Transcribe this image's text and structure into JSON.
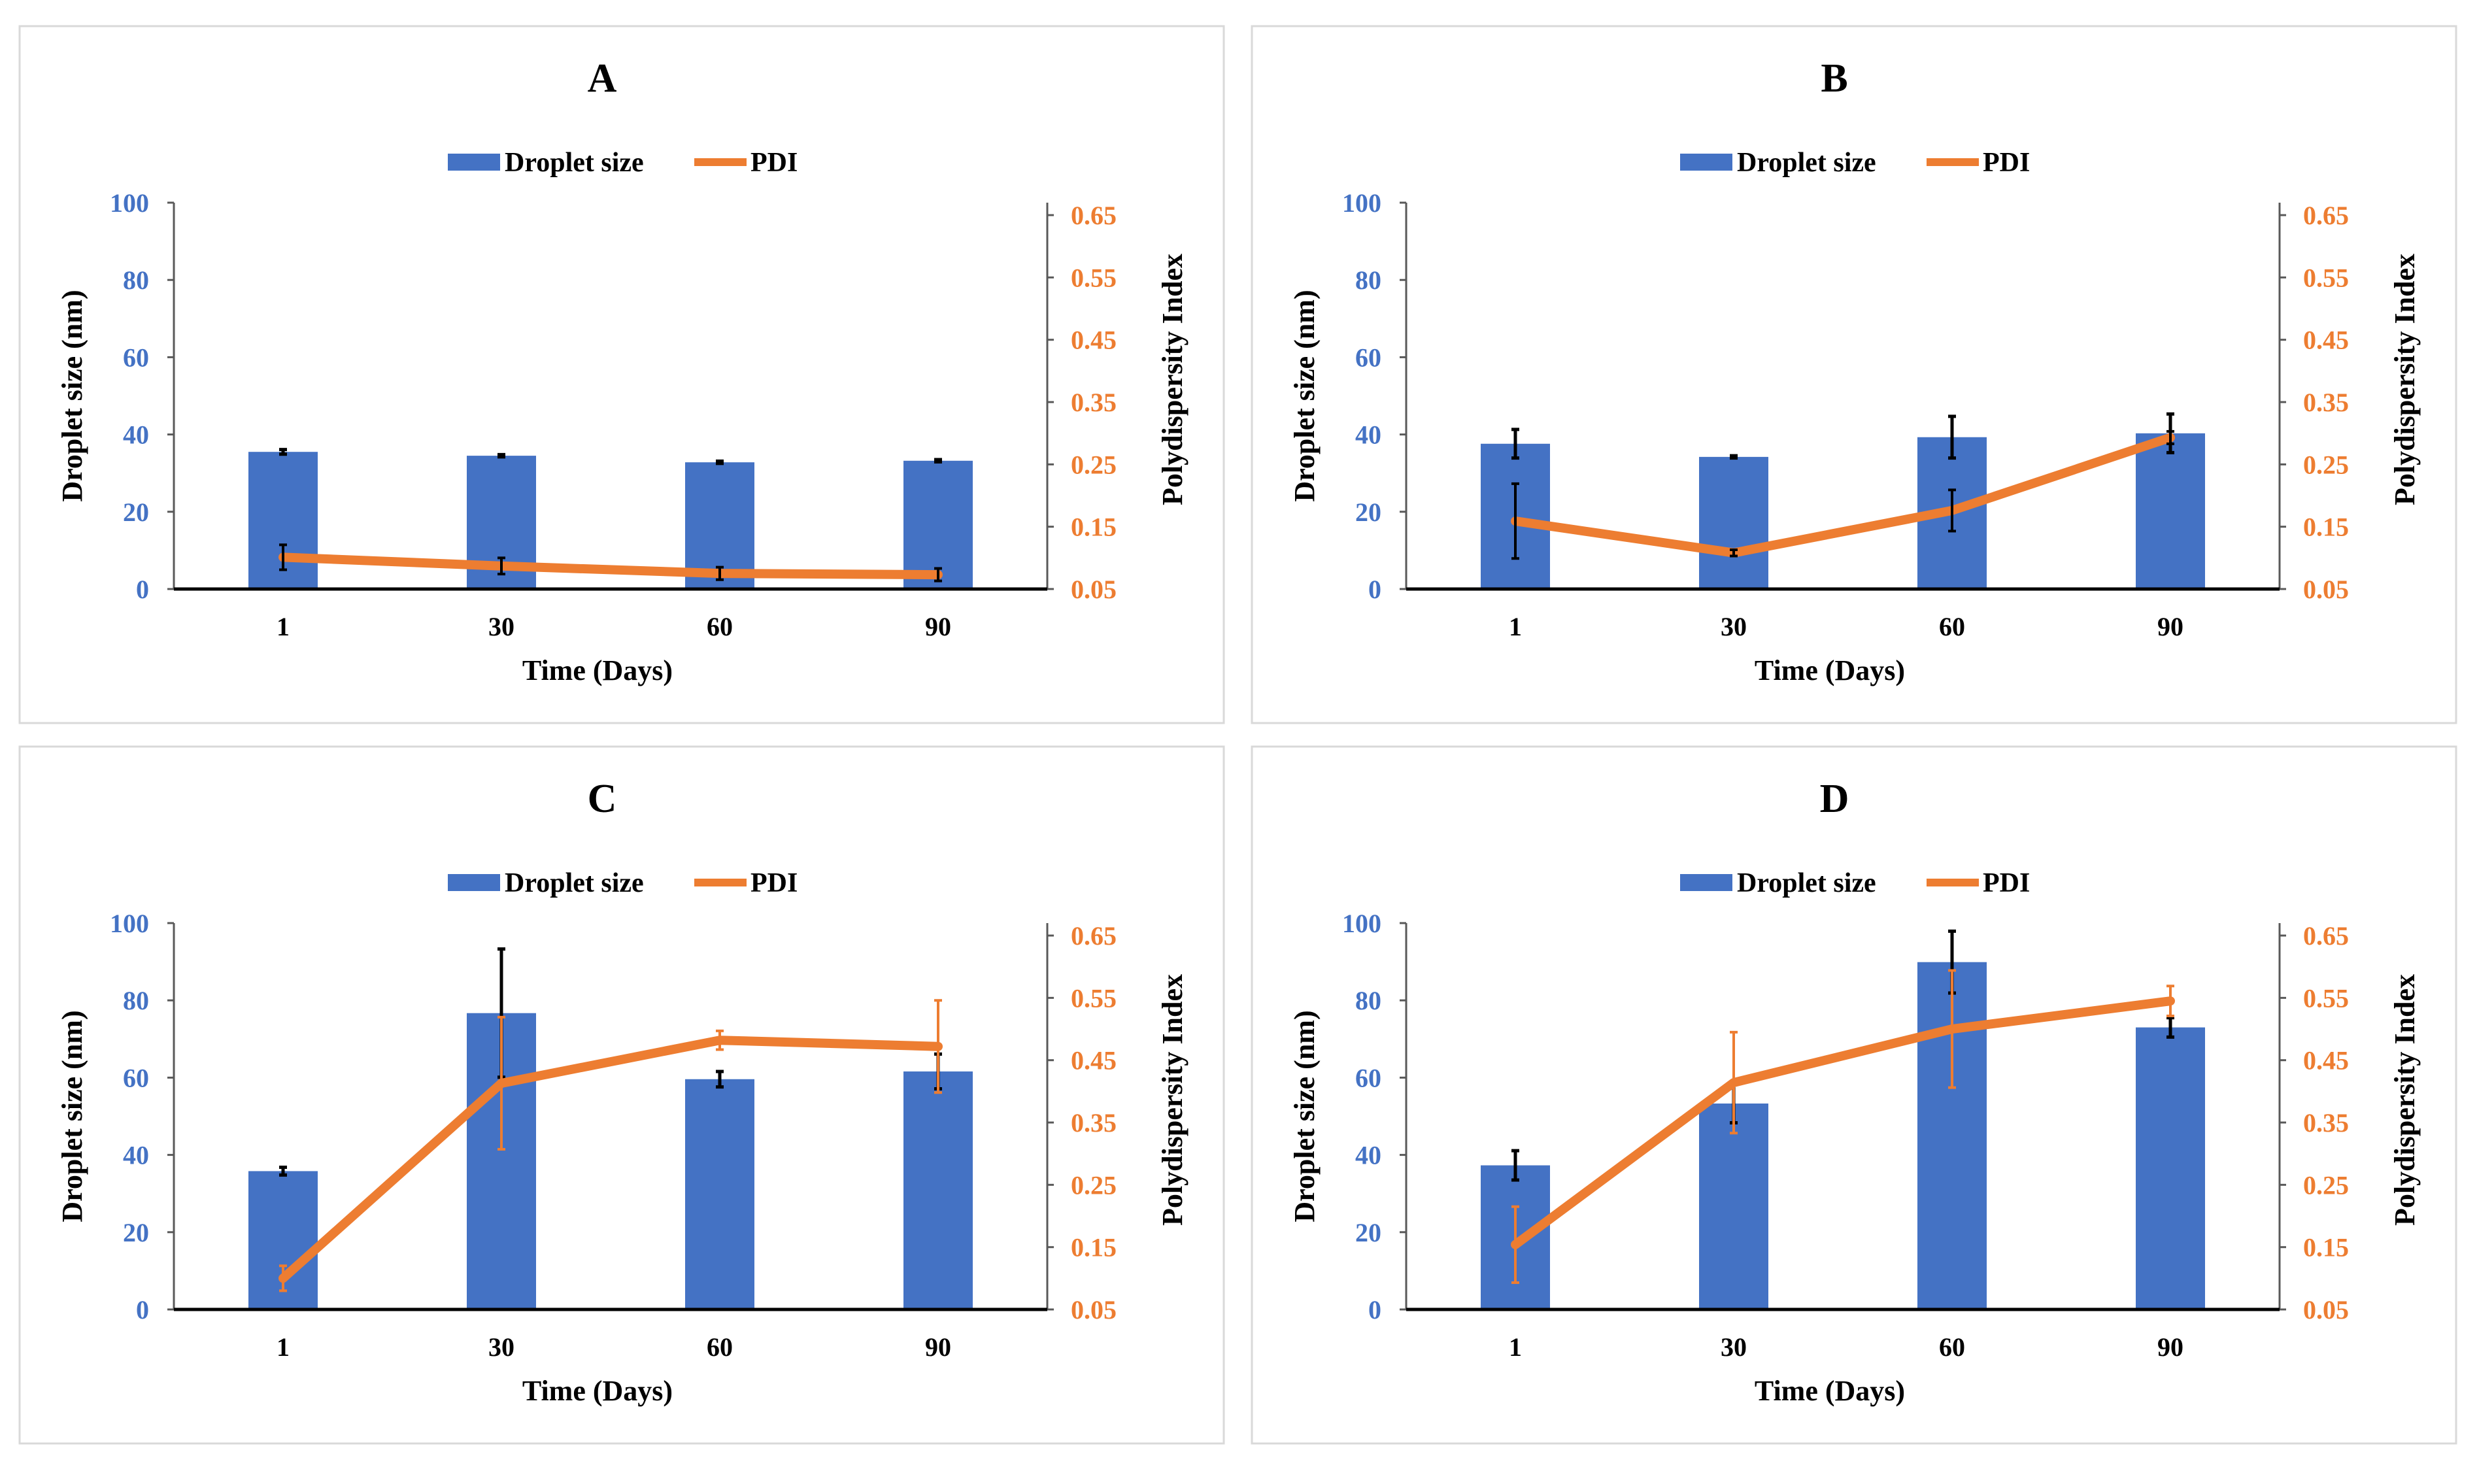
{
  "chart_data": [
    {
      "type": "bar+line",
      "title": "A",
      "categories": [
        "1",
        "30",
        "60",
        "90"
      ],
      "xlabel": "Time (Days)",
      "ylabel": "Droplet size (nm)",
      "y2label": "Polydispersity Index",
      "ylim": [
        0,
        100
      ],
      "yticks": [
        0,
        20,
        40,
        60,
        80,
        100
      ],
      "y2lim": [
        0.05,
        0.67
      ],
      "y2ticks": [
        "0.05",
        "0.15",
        "0.25",
        "0.35",
        "0.45",
        "0.55",
        "0.65"
      ],
      "legend": [
        "Droplet size",
        "PDI"
      ],
      "series": [
        {
          "name": "Droplet size",
          "type": "bar",
          "values": [
            35.5,
            34.5,
            32.8,
            33.2
          ],
          "errors": [
            0.6,
            0.3,
            0.3,
            0.3
          ]
        },
        {
          "name": "PDI",
          "type": "line",
          "values": [
            0.101,
            0.087,
            0.075,
            0.073
          ],
          "errors": [
            0.02,
            0.013,
            0.01,
            0.01
          ]
        }
      ]
    },
    {
      "type": "bar+line",
      "title": "B",
      "categories": [
        "1",
        "30",
        "60",
        "90"
      ],
      "xlabel": "Time (Days)",
      "ylabel": "Droplet size (nm)",
      "y2label": "Polydispersity Index",
      "ylim": [
        0,
        100
      ],
      "yticks": [
        0,
        20,
        40,
        60,
        80,
        100
      ],
      "y2lim": [
        0.05,
        0.67
      ],
      "y2ticks": [
        "0.05",
        "0.15",
        "0.25",
        "0.35",
        "0.45",
        "0.55",
        "0.65"
      ],
      "legend": [
        "Droplet size",
        "PDI"
      ],
      "series": [
        {
          "name": "Droplet size",
          "type": "bar",
          "values": [
            37.6,
            34.2,
            39.3,
            40.3
          ],
          "errors": [
            3.7,
            0.3,
            5.4,
            5.0
          ]
        },
        {
          "name": "PDI",
          "type": "line",
          "values": [
            0.159,
            0.108,
            0.176,
            0.293
          ],
          "errors": [
            0.06,
            0.005,
            0.033,
            0.01
          ]
        }
      ]
    },
    {
      "type": "bar+line",
      "title": "C",
      "categories": [
        "1",
        "30",
        "60",
        "90"
      ],
      "xlabel": "Time (Days)",
      "ylabel": "Droplet size (nm)",
      "y2label": "Polydispersity Index",
      "ylim": [
        0,
        100
      ],
      "yticks": [
        0,
        20,
        40,
        60,
        80,
        100
      ],
      "y2lim": [
        0.05,
        0.67
      ],
      "y2ticks": [
        "0.05",
        "0.15",
        "0.25",
        "0.35",
        "0.45",
        "0.55",
        "0.65"
      ],
      "legend": [
        "Droplet size",
        "PDI"
      ],
      "series": [
        {
          "name": "Droplet size",
          "type": "bar",
          "values": [
            35.8,
            76.7,
            59.6,
            61.6
          ],
          "errors": [
            1.0,
            16.6,
            2.0,
            4.5
          ]
        },
        {
          "name": "PDI",
          "type": "line",
          "values": [
            0.1,
            0.413,
            0.482,
            0.472
          ],
          "errors": [
            0.02,
            0.106,
            0.015,
            0.074
          ]
        }
      ]
    },
    {
      "type": "bar+line",
      "title": "D",
      "categories": [
        "1",
        "30",
        "60",
        "90"
      ],
      "xlabel": "Time (Days)",
      "ylabel": "Droplet size (nm)",
      "y2label": "Polydispersity Index",
      "ylim": [
        0,
        100
      ],
      "yticks": [
        0,
        20,
        40,
        60,
        80,
        100
      ],
      "y2lim": [
        0.05,
        0.67
      ],
      "y2ticks": [
        "0.05",
        "0.15",
        "0.25",
        "0.35",
        "0.45",
        "0.55",
        "0.65"
      ],
      "legend": [
        "Droplet size",
        "PDI"
      ],
      "series": [
        {
          "name": "Droplet size",
          "type": "bar",
          "values": [
            37.3,
            53.3,
            89.9,
            73.0
          ],
          "errors": [
            3.8,
            5.0,
            8.0,
            2.5
          ]
        },
        {
          "name": "PDI",
          "type": "line",
          "values": [
            0.154,
            0.414,
            0.5,
            0.545
          ],
          "errors": [
            0.061,
            0.081,
            0.094,
            0.024
          ]
        }
      ]
    }
  ],
  "colors": {
    "bar": "#4472C4",
    "line": "#ED7D31",
    "axis_left_text": "#4472C4",
    "axis_right_text": "#ED7D31",
    "error_bar": "#000000",
    "panel_border": "#D9D9D9"
  }
}
